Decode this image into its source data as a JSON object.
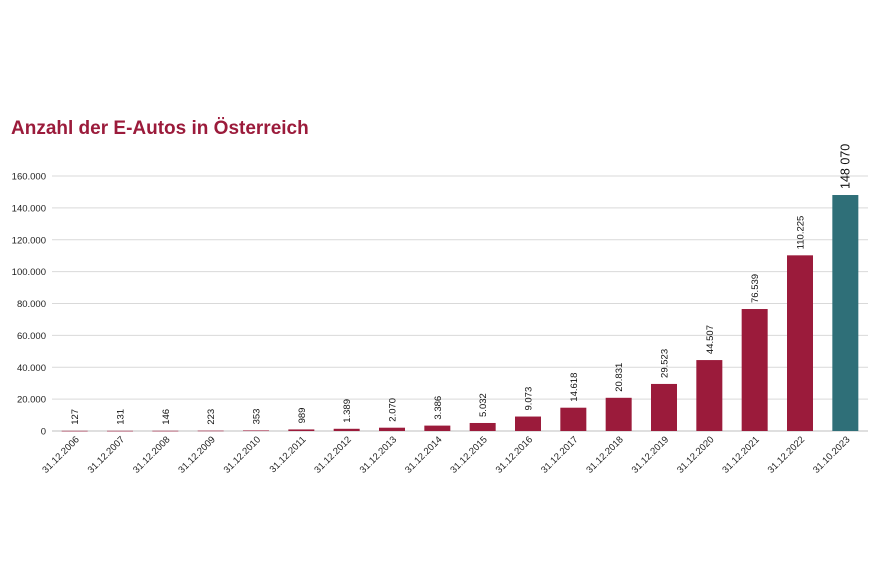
{
  "chart_data": {
    "type": "bar",
    "title": "Anzahl der E-Autos in Österreich",
    "xlabel": "",
    "ylabel": "",
    "ylim": [
      0,
      160000
    ],
    "yticks": [
      0,
      20000,
      40000,
      60000,
      80000,
      100000,
      120000,
      140000,
      160000
    ],
    "ytick_labels": [
      "0",
      "20.000",
      "40.000",
      "60.000",
      "80.000",
      "100.000",
      "120.000",
      "140.000",
      "160.000"
    ],
    "grid": true,
    "legend": "none",
    "categories": [
      "31.12.2006",
      "31.12.2007",
      "31.12.2008",
      "31.12.2009",
      "31.12.2010",
      "31.12.2011",
      "31.12.2012",
      "31.12.2013",
      "31.12.2014",
      "31.12.2015",
      "31.12.2016",
      "31.12.2017",
      "31.12.2018",
      "31.12.2019",
      "31.12.2020",
      "31.12.2021",
      "31.12.2022",
      "31.10.2023"
    ],
    "values": [
      127,
      131,
      146,
      223,
      353,
      989,
      1389,
      2070,
      3386,
      5032,
      9073,
      14618,
      20831,
      29523,
      44507,
      76539,
      110225,
      148070
    ],
    "data_labels": [
      "127",
      "131",
      "146",
      "223",
      "353",
      "989",
      "1.389",
      "2.070",
      "3.386",
      "5.032",
      "9.073",
      "14.618",
      "20.831",
      "29.523",
      "44.507",
      "76.539",
      "110.225",
      "148 070"
    ],
    "colors": {
      "bar": "#9b1b3b",
      "highlight_bar": "#2f6f78",
      "title": "#9b1b3b",
      "grid": "#d9d9d9"
    },
    "highlight_index": 17
  }
}
